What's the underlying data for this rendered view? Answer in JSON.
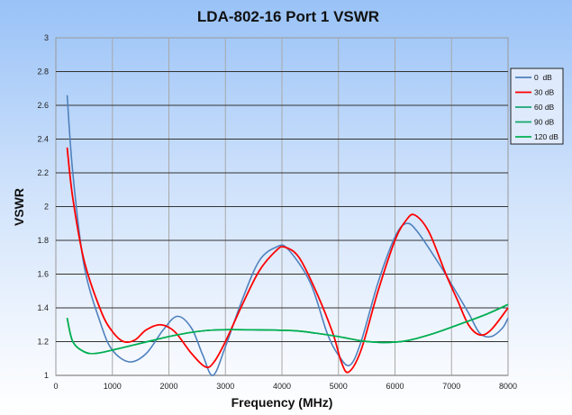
{
  "chart_data": {
    "type": "line",
    "title": "LDA-802-16 Port 1 VSWR",
    "xlabel": "Frequency (MHz)",
    "ylabel": "VSWR",
    "xlim": [
      0,
      8000
    ],
    "ylim": [
      1,
      3
    ],
    "xticks": [
      0,
      1000,
      2000,
      3000,
      4000,
      5000,
      6000,
      7000,
      8000
    ],
    "yticks": [
      1,
      1.2,
      1.4,
      1.6,
      1.8,
      2,
      2.2,
      2.4,
      2.6,
      2.8,
      3
    ],
    "grid": true,
    "legend_position": "right",
    "series": [
      {
        "name": "0  dB",
        "color": "#4f81bd",
        "x": [
          200,
          300,
          500,
          800,
          1000,
          1300,
          1600,
          1900,
          2150,
          2400,
          2600,
          2780,
          3000,
          3300,
          3600,
          3900,
          4100,
          4500,
          4800,
          5000,
          5200,
          5400,
          5700,
          6000,
          6200,
          6400,
          6800,
          7000,
          7300,
          7500,
          7700,
          7900,
          8000
        ],
        "y": [
          2.66,
          2.2,
          1.65,
          1.3,
          1.15,
          1.08,
          1.13,
          1.27,
          1.35,
          1.28,
          1.12,
          1.0,
          1.17,
          1.45,
          1.68,
          1.76,
          1.75,
          1.55,
          1.25,
          1.12,
          1.06,
          1.2,
          1.55,
          1.82,
          1.9,
          1.85,
          1.65,
          1.54,
          1.37,
          1.25,
          1.23,
          1.28,
          1.34
        ]
      },
      {
        "name": "30 dB",
        "color": "#ff0000",
        "x": [
          200,
          300,
          500,
          800,
          1000,
          1200,
          1400,
          1600,
          1850,
          2100,
          2400,
          2650,
          2800,
          3000,
          3300,
          3600,
          3900,
          4050,
          4300,
          4600,
          4900,
          5050,
          5180,
          5400,
          5700,
          6000,
          6200,
          6350,
          6600,
          6900,
          7100,
          7300,
          7500,
          7700,
          8000
        ],
        "y": [
          2.35,
          2.05,
          1.68,
          1.38,
          1.26,
          1.2,
          1.21,
          1.27,
          1.3,
          1.26,
          1.13,
          1.05,
          1.08,
          1.2,
          1.42,
          1.62,
          1.74,
          1.76,
          1.7,
          1.5,
          1.25,
          1.08,
          1.02,
          1.15,
          1.5,
          1.8,
          1.92,
          1.95,
          1.85,
          1.6,
          1.45,
          1.3,
          1.24,
          1.27,
          1.4
        ]
      },
      {
        "name": "60 dB",
        "color": "#17a673",
        "x": [
          200,
          300,
          500,
          700,
          1000,
          1500,
          2000,
          2500,
          2900,
          3500,
          4200,
          4600,
          5000,
          5400,
          5800,
          6200,
          6700,
          7200,
          7600,
          8000
        ],
        "y": [
          1.34,
          1.2,
          1.14,
          1.13,
          1.15,
          1.19,
          1.23,
          1.26,
          1.27,
          1.27,
          1.265,
          1.25,
          1.23,
          1.205,
          1.195,
          1.205,
          1.25,
          1.31,
          1.36,
          1.42
        ]
      },
      {
        "name": "90 dB",
        "color": "#13a86a",
        "x": [
          200,
          300,
          500,
          700,
          1000,
          1500,
          2000,
          2500,
          2900,
          3500,
          4200,
          4600,
          5000,
          5400,
          5800,
          6200,
          6700,
          7200,
          7600,
          8000
        ],
        "y": [
          1.34,
          1.2,
          1.14,
          1.13,
          1.15,
          1.19,
          1.23,
          1.26,
          1.27,
          1.27,
          1.265,
          1.25,
          1.23,
          1.205,
          1.195,
          1.205,
          1.25,
          1.31,
          1.36,
          1.42
        ]
      },
      {
        "name": "120 dB",
        "color": "#00b050",
        "x": [
          200,
          300,
          500,
          700,
          1000,
          1500,
          2000,
          2500,
          2900,
          3500,
          4200,
          4600,
          5000,
          5400,
          5800,
          6200,
          6700,
          7200,
          7600,
          8000
        ],
        "y": [
          1.34,
          1.2,
          1.14,
          1.13,
          1.15,
          1.19,
          1.23,
          1.26,
          1.27,
          1.27,
          1.265,
          1.25,
          1.23,
          1.205,
          1.195,
          1.205,
          1.25,
          1.31,
          1.36,
          1.42
        ]
      }
    ]
  }
}
